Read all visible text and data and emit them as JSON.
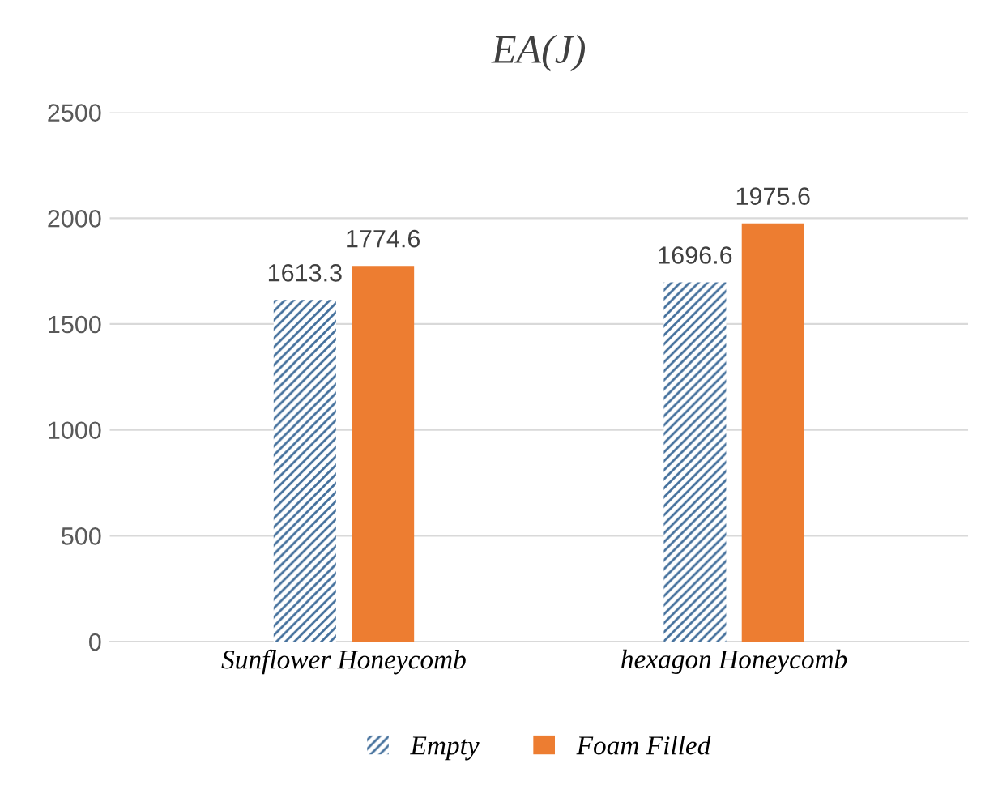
{
  "chart_data": {
    "type": "bar",
    "title": "EA(J)",
    "categories": [
      "Sunflower Honeycomb",
      "hexagon Honeycomb"
    ],
    "series": [
      {
        "name": "Empty",
        "color": "#44709c",
        "values": [
          1613.3,
          1696.6
        ]
      },
      {
        "name": "Foam Filled",
        "color": "#ed7d31",
        "values": [
          1774.6,
          1975.6
        ]
      }
    ],
    "ylim": [
      0,
      2500
    ],
    "yticks": [
      0,
      500,
      1000,
      1500,
      2000,
      2500
    ],
    "grid": "y",
    "legend": "bottom",
    "data_labels": true
  }
}
